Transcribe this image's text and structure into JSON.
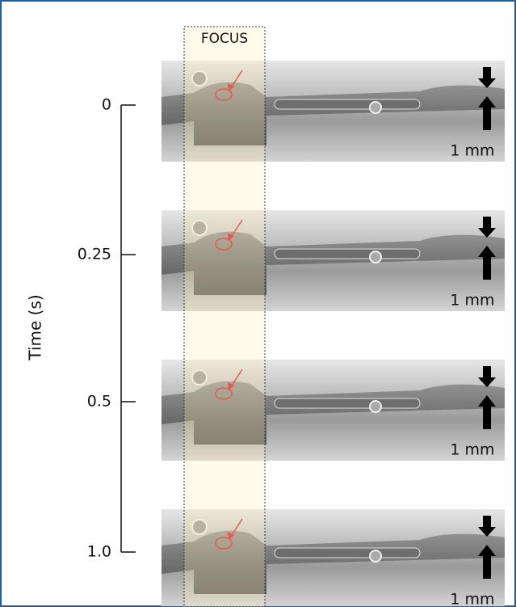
{
  "figure": {
    "focus_label": "FOCUS",
    "axis_label": "Time (s)",
    "ticks": [
      "0",
      "0.25",
      "0.5",
      "1.0"
    ],
    "frames": [
      {
        "scale_label": "1 mm"
      },
      {
        "scale_label": "1 mm"
      },
      {
        "scale_label": "1 mm"
      },
      {
        "scale_label": "1 mm"
      }
    ]
  }
}
